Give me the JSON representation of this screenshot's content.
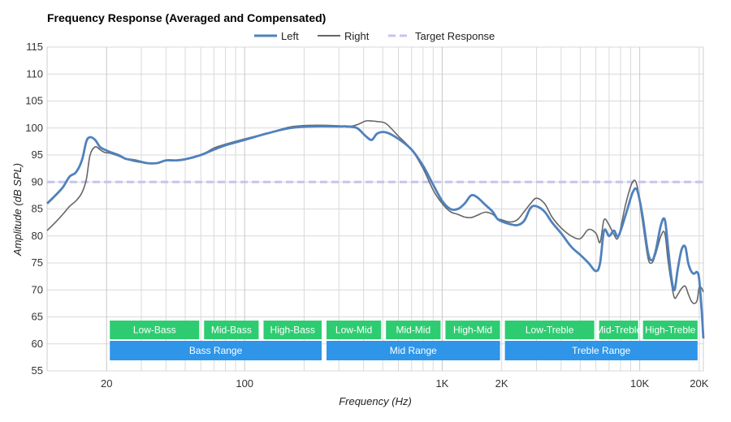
{
  "chart_data": {
    "type": "line",
    "title": "Frequency Response (Averaged and Compensated)",
    "xlabel": "Frequency (Hz)",
    "ylabel": "Amplitude (dB SPL)",
    "xscale": "log",
    "xlim": [
      10,
      21000
    ],
    "ylim": [
      55,
      115
    ],
    "yticks": [
      55,
      60,
      65,
      70,
      75,
      80,
      85,
      90,
      95,
      100,
      105,
      110,
      115
    ],
    "xticks": [
      {
        "value": 20,
        "label": "20"
      },
      {
        "value": 100,
        "label": "100"
      },
      {
        "value": 1000,
        "label": "1K"
      },
      {
        "value": 2000,
        "label": "2K"
      },
      {
        "value": 10000,
        "label": "10K"
      },
      {
        "value": 20000,
        "label": "20K"
      }
    ],
    "colors": {
      "left": "#4f81bd",
      "right": "#666666",
      "target": "#c4c4f0",
      "band_green": "#2ecc71",
      "band_blue": "#2e95e8"
    },
    "legend": {
      "position": "top-center",
      "items": [
        "Left",
        "Right",
        "Target Response"
      ]
    },
    "series": [
      {
        "name": "Left",
        "points": [
          [
            10,
            86
          ],
          [
            11,
            87.5
          ],
          [
            12,
            89
          ],
          [
            13,
            91
          ],
          [
            14,
            91.8
          ],
          [
            15,
            94
          ],
          [
            15.8,
            97.5
          ],
          [
            16.5,
            98.3
          ],
          [
            17.5,
            97.8
          ],
          [
            18.5,
            96.5
          ],
          [
            19.5,
            96
          ],
          [
            21,
            95.5
          ],
          [
            23,
            95
          ],
          [
            25,
            94.3
          ],
          [
            28,
            94
          ],
          [
            32,
            93.5
          ],
          [
            36,
            93.5
          ],
          [
            40,
            94
          ],
          [
            45,
            94
          ],
          [
            50,
            94.2
          ],
          [
            60,
            95
          ],
          [
            70,
            96
          ],
          [
            80,
            96.8
          ],
          [
            100,
            97.8
          ],
          [
            130,
            99
          ],
          [
            170,
            100
          ],
          [
            220,
            100.3
          ],
          [
            300,
            100.3
          ],
          [
            330,
            100.3
          ],
          [
            370,
            100
          ],
          [
            410,
            98.5
          ],
          [
            440,
            97.8
          ],
          [
            470,
            99
          ],
          [
            520,
            99.2
          ],
          [
            600,
            98
          ],
          [
            700,
            96
          ],
          [
            800,
            93
          ],
          [
            900,
            89.5
          ],
          [
            1000,
            86.5
          ],
          [
            1100,
            85
          ],
          [
            1200,
            85
          ],
          [
            1300,
            86
          ],
          [
            1400,
            87.5
          ],
          [
            1500,
            87.2
          ],
          [
            1650,
            85.8
          ],
          [
            1800,
            84.5
          ],
          [
            1900,
            83.2
          ],
          [
            2000,
            82.7
          ],
          [
            2200,
            82.2
          ],
          [
            2400,
            82
          ],
          [
            2600,
            82.8
          ],
          [
            2800,
            85.2
          ],
          [
            3000,
            85.5
          ],
          [
            3300,
            84.5
          ],
          [
            3600,
            82.5
          ],
          [
            4000,
            80.5
          ],
          [
            4500,
            78
          ],
          [
            5000,
            76.5
          ],
          [
            5500,
            75
          ],
          [
            6000,
            73.5
          ],
          [
            6300,
            75
          ],
          [
            6600,
            81
          ],
          [
            7000,
            80
          ],
          [
            7400,
            81
          ],
          [
            7800,
            80
          ],
          [
            8500,
            84
          ],
          [
            9200,
            88
          ],
          [
            9700,
            88.5
          ],
          [
            10300,
            84
          ],
          [
            11000,
            77
          ],
          [
            11500,
            75.5
          ],
          [
            12000,
            77
          ],
          [
            12800,
            82
          ],
          [
            13400,
            83
          ],
          [
            13900,
            78
          ],
          [
            14500,
            72
          ],
          [
            15000,
            70
          ],
          [
            15600,
            74
          ],
          [
            16300,
            77.5
          ],
          [
            17000,
            78
          ],
          [
            17600,
            75
          ],
          [
            18200,
            73.5
          ],
          [
            18800,
            73
          ],
          [
            19500,
            73.3
          ],
          [
            20000,
            72
          ],
          [
            20600,
            66
          ],
          [
            21000,
            61
          ]
        ]
      },
      {
        "name": "Right",
        "points": [
          [
            10,
            81
          ],
          [
            11,
            82.5
          ],
          [
            12,
            84
          ],
          [
            13,
            85.5
          ],
          [
            14,
            86.5
          ],
          [
            15,
            88
          ],
          [
            15.8,
            90.5
          ],
          [
            16.5,
            95
          ],
          [
            17.5,
            96.5
          ],
          [
            18.5,
            96
          ],
          [
            19.5,
            95.5
          ],
          [
            21,
            95.3
          ],
          [
            23,
            94.8
          ],
          [
            25,
            94.3
          ],
          [
            28,
            93.8
          ],
          [
            32,
            93.5
          ],
          [
            36,
            93.5
          ],
          [
            40,
            94
          ],
          [
            45,
            94
          ],
          [
            50,
            94.2
          ],
          [
            60,
            95
          ],
          [
            70,
            96.3
          ],
          [
            80,
            97
          ],
          [
            100,
            98
          ],
          [
            130,
            99
          ],
          [
            170,
            100.2
          ],
          [
            220,
            100.5
          ],
          [
            300,
            100.4
          ],
          [
            330,
            100.2
          ],
          [
            370,
            100.6
          ],
          [
            410,
            101.3
          ],
          [
            440,
            101.3
          ],
          [
            470,
            101.2
          ],
          [
            520,
            100.8
          ],
          [
            600,
            98.5
          ],
          [
            700,
            96
          ],
          [
            800,
            92.5
          ],
          [
            900,
            88.5
          ],
          [
            1000,
            86
          ],
          [
            1100,
            84.5
          ],
          [
            1200,
            84
          ],
          [
            1300,
            83.5
          ],
          [
            1400,
            83.4
          ],
          [
            1500,
            83.8
          ],
          [
            1650,
            84.4
          ],
          [
            1800,
            84
          ],
          [
            1900,
            83.2
          ],
          [
            2000,
            83
          ],
          [
            2200,
            82.6
          ],
          [
            2400,
            83
          ],
          [
            2600,
            84.5
          ],
          [
            2800,
            86
          ],
          [
            3000,
            87
          ],
          [
            3300,
            86
          ],
          [
            3600,
            83.5
          ],
          [
            4000,
            81.5
          ],
          [
            4500,
            80
          ],
          [
            5000,
            79.5
          ],
          [
            5500,
            81.2
          ],
          [
            6000,
            80.5
          ],
          [
            6300,
            78.8
          ],
          [
            6600,
            83
          ],
          [
            7000,
            82
          ],
          [
            7400,
            80.3
          ],
          [
            7800,
            79.8
          ],
          [
            8500,
            86
          ],
          [
            9200,
            90
          ],
          [
            9700,
            89.3
          ],
          [
            10300,
            83
          ],
          [
            11000,
            76
          ],
          [
            11500,
            75
          ],
          [
            12000,
            76.5
          ],
          [
            12800,
            80
          ],
          [
            13400,
            80.5
          ],
          [
            13900,
            75.5
          ],
          [
            14500,
            71
          ],
          [
            15000,
            68.5
          ],
          [
            15600,
            69.2
          ],
          [
            16300,
            70.3
          ],
          [
            17000,
            70.7
          ],
          [
            17600,
            69.3
          ],
          [
            18200,
            68
          ],
          [
            18800,
            67.5
          ],
          [
            19500,
            68
          ],
          [
            20000,
            70.5
          ],
          [
            20600,
            70.3
          ],
          [
            21000,
            69.6
          ]
        ]
      },
      {
        "name": "Target Response",
        "points": [
          [
            10,
            90
          ],
          [
            21000,
            90
          ]
        ]
      }
    ],
    "bands": [
      {
        "label": "Low-Bass",
        "row": 1,
        "from": 20,
        "to": 60
      },
      {
        "label": "Mid-Bass",
        "row": 1,
        "from": 60,
        "to": 120
      },
      {
        "label": "High-Bass",
        "row": 1,
        "from": 120,
        "to": 250
      },
      {
        "label": "Low-Mid",
        "row": 1,
        "from": 250,
        "to": 500
      },
      {
        "label": "Mid-Mid",
        "row": 1,
        "from": 500,
        "to": 1000
      },
      {
        "label": "High-Mid",
        "row": 1,
        "from": 1000,
        "to": 2000
      },
      {
        "label": "Low-Treble",
        "row": 1,
        "from": 2000,
        "to": 6000
      },
      {
        "label": "Mid-Treble",
        "row": 1,
        "from": 6000,
        "to": 10000
      },
      {
        "label": "High-Treble",
        "row": 1,
        "from": 10000,
        "to": 20000
      },
      {
        "label": "Bass Range",
        "row": 2,
        "from": 20,
        "to": 250
      },
      {
        "label": "Mid Range",
        "row": 2,
        "from": 250,
        "to": 2000
      },
      {
        "label": "Treble Range",
        "row": 2,
        "from": 2000,
        "to": 20000
      }
    ]
  }
}
